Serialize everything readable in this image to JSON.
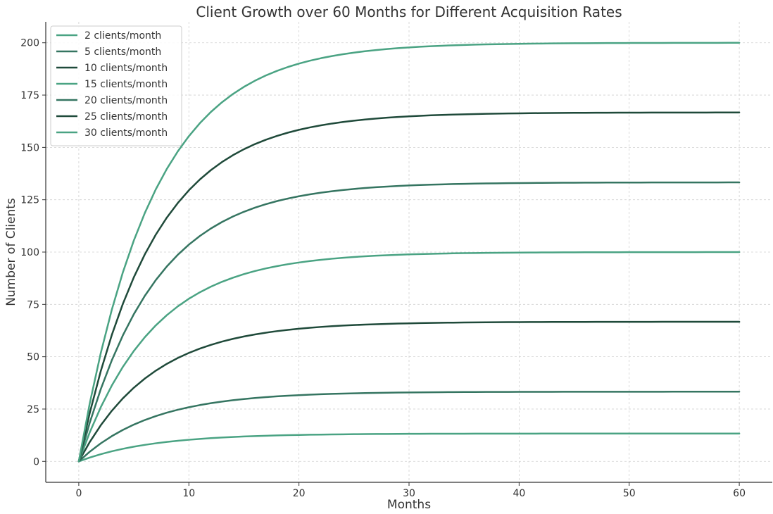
{
  "chart_data": {
    "type": "line",
    "title": "Client Growth over 60 Months for Different Acquisition Rates",
    "xlabel": "Months",
    "ylabel": "Number of Clients",
    "xlim": [
      -3,
      63
    ],
    "ylim": [
      -10,
      210
    ],
    "xticks": [
      0,
      10,
      20,
      30,
      40,
      50,
      60
    ],
    "yticks": [
      0,
      25,
      50,
      75,
      100,
      125,
      150,
      175,
      200
    ],
    "grid": true,
    "legend_position": "top-left",
    "model": "clients(t) = rate/0.15 * (1 - exp(-0.15 t))",
    "series": [
      {
        "name": "2 clients/month",
        "rate": 2,
        "plateau": 13.3,
        "color": "#4aa383"
      },
      {
        "name": "5 clients/month",
        "rate": 5,
        "plateau": 33.3,
        "color": "#357561"
      },
      {
        "name": "10 clients/month",
        "rate": 10,
        "plateau": 66.7,
        "color": "#1f4a3a"
      },
      {
        "name": "15 clients/month",
        "rate": 15,
        "plateau": 100.0,
        "color": "#4aa383"
      },
      {
        "name": "20 clients/month",
        "rate": 20,
        "plateau": 133.3,
        "color": "#357561"
      },
      {
        "name": "25 clients/month",
        "rate": 25,
        "plateau": 166.7,
        "color": "#1f4a3a"
      },
      {
        "name": "30 clients/month",
        "rate": 30,
        "plateau": 200.0,
        "color": "#4aa383"
      }
    ]
  }
}
